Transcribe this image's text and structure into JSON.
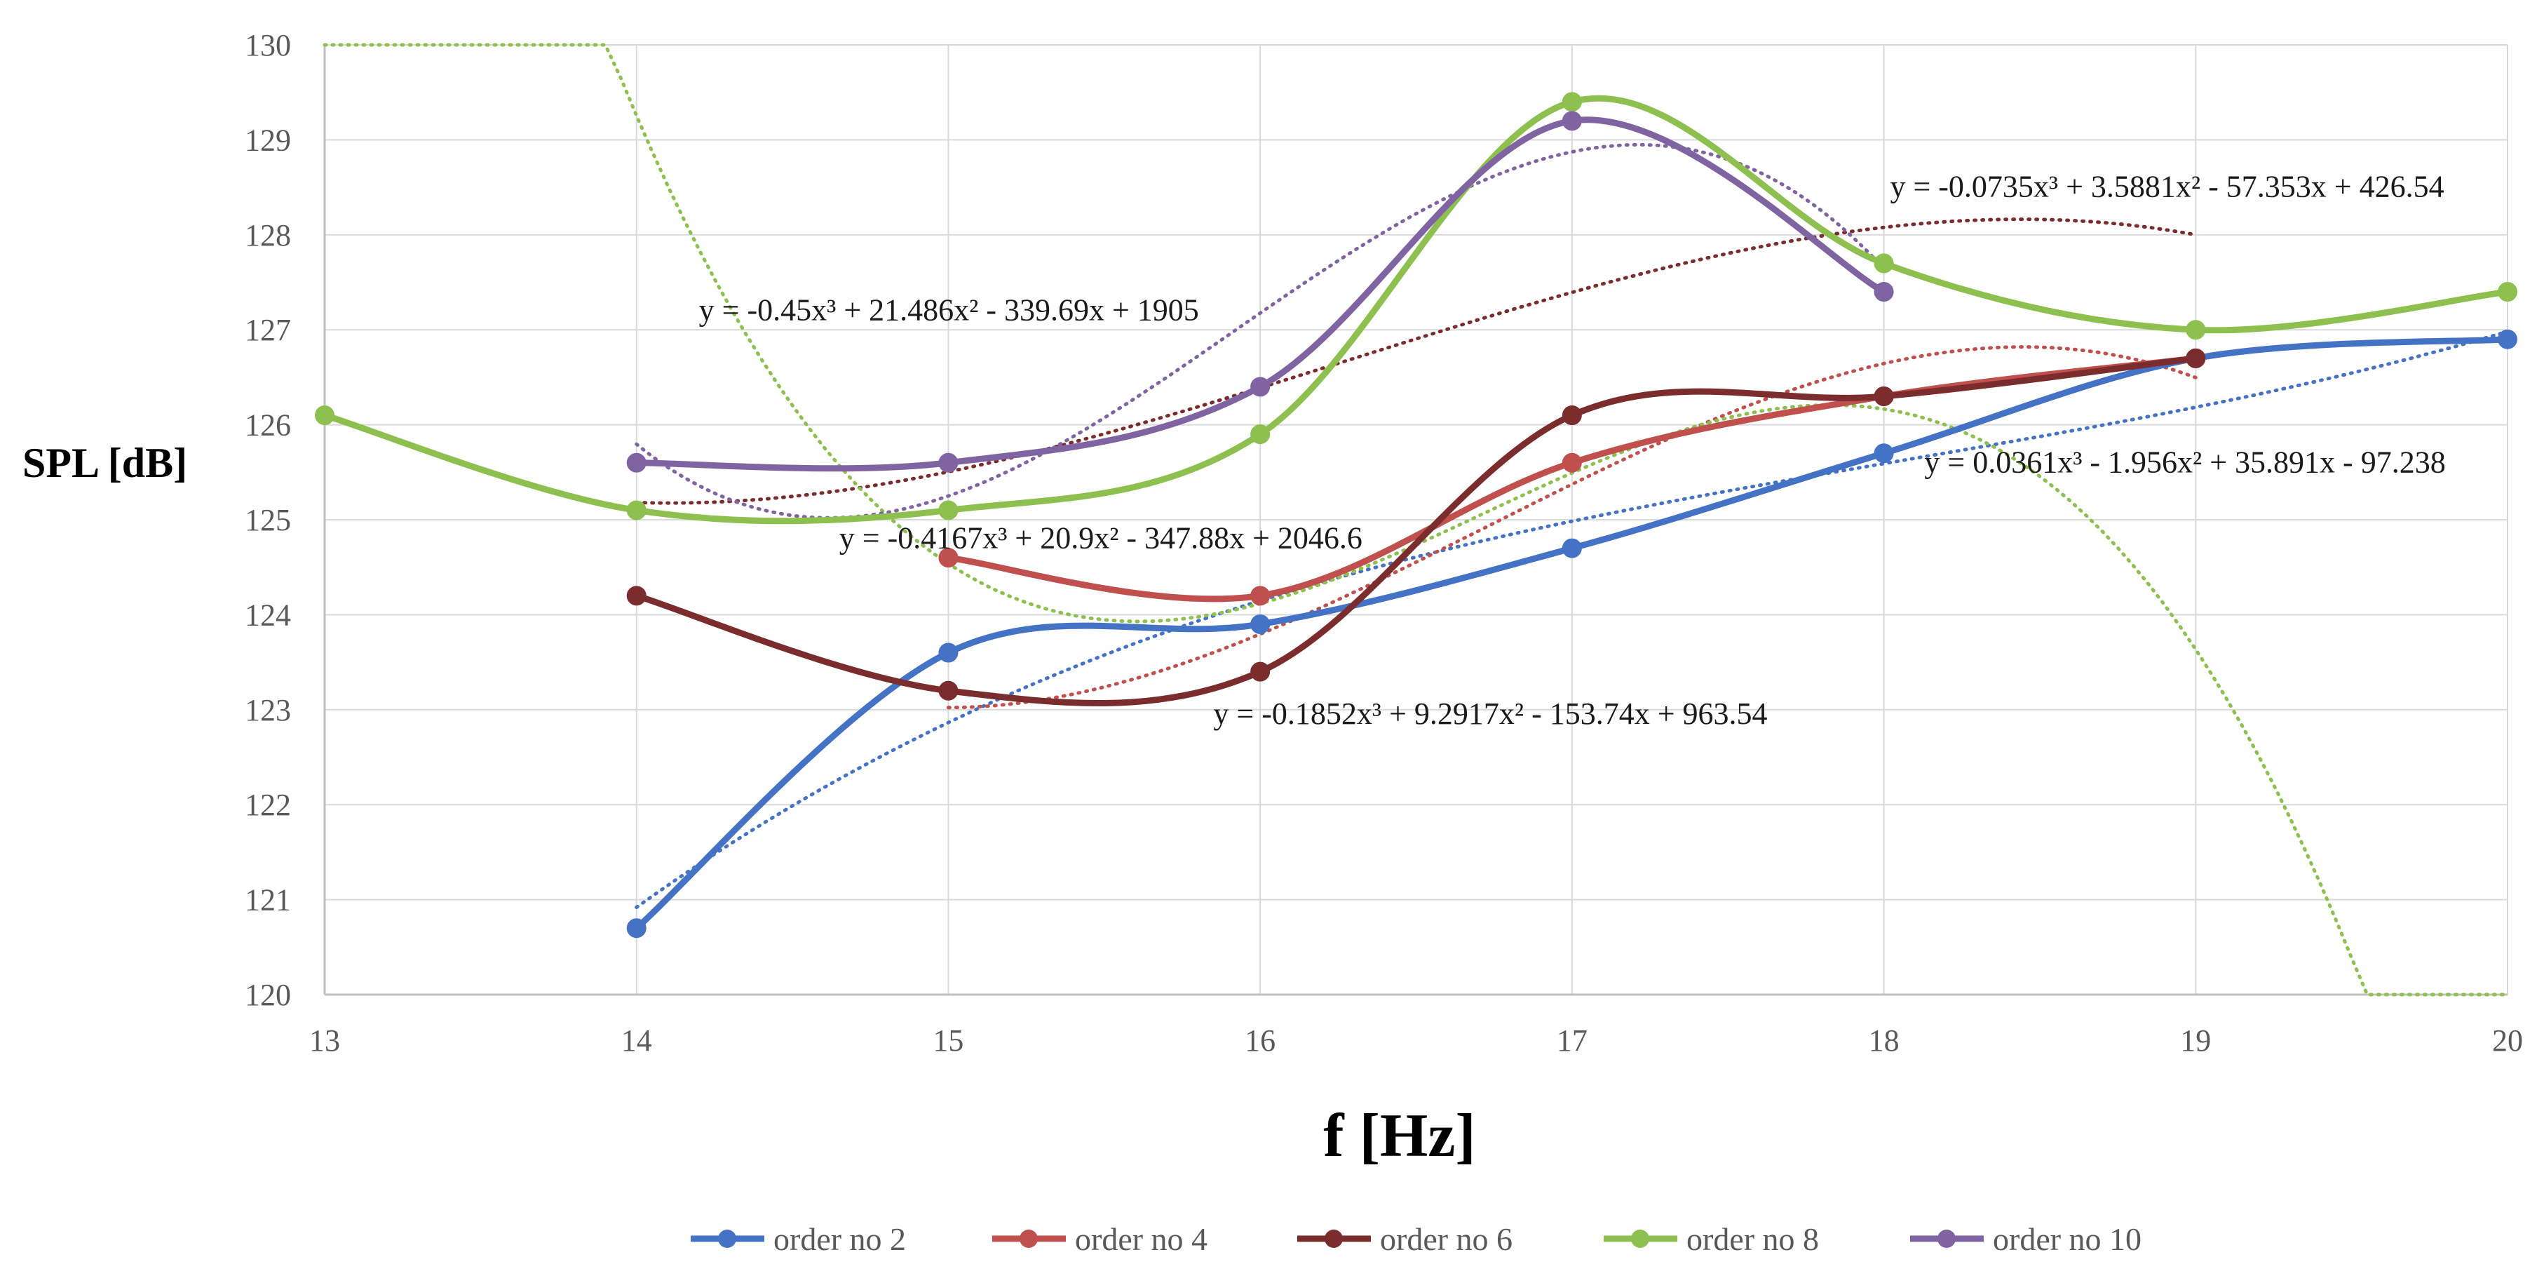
{
  "chart_data": {
    "type": "line",
    "title": "",
    "xlabel": "f [Hz]",
    "ylabel": "SPL [dB]",
    "xlim": [
      13,
      20
    ],
    "ylim": [
      120,
      130
    ],
    "x_ticks": [
      "13",
      "14",
      "15",
      "16",
      "17",
      "18",
      "19",
      "20"
    ],
    "y_ticks": [
      "120",
      "121",
      "122",
      "123",
      "124",
      "125",
      "126",
      "127",
      "128",
      "129",
      "130"
    ],
    "grid": true,
    "legend_position": "bottom",
    "series": [
      {
        "name": "order no 2",
        "color": "#4472C4",
        "x": [
          14,
          15,
          16,
          17,
          18,
          19,
          20
        ],
        "values": [
          120.7,
          123.6,
          123.9,
          124.7,
          125.7,
          126.7,
          126.9
        ],
        "trendline": {
          "type": "poly3",
          "coeffs": [
            0.0361,
            -1.956,
            35.891,
            -97.238
          ],
          "range": [
            14,
            20
          ]
        }
      },
      {
        "name": "order no 4",
        "color": "#C0504D",
        "x": [
          15,
          16,
          17,
          18,
          19
        ],
        "values": [
          124.6,
          124.2,
          125.6,
          126.3,
          126.7
        ],
        "trendline": {
          "type": "poly3",
          "coeffs": [
            -0.1852,
            9.2917,
            -153.74,
            963.54
          ],
          "range": [
            15,
            19
          ]
        }
      },
      {
        "name": "order no 6",
        "color": "#7B2C2C",
        "x": [
          14,
          15,
          16,
          17,
          18,
          19
        ],
        "values": [
          124.2,
          123.2,
          123.4,
          126.1,
          126.3,
          126.7
        ],
        "trendline": {
          "type": "poly3",
          "coeffs": [
            -0.0735,
            3.5881,
            -57.353,
            426.54
          ],
          "range": [
            14,
            19
          ]
        }
      },
      {
        "name": "order no 8",
        "color": "#8DC04F",
        "x": [
          13,
          14,
          15,
          16,
          17,
          18,
          19,
          20
        ],
        "values": [
          126.1,
          125.1,
          125.1,
          125.9,
          129.4,
          127.7,
          127.0,
          127.4
        ],
        "trendline": {
          "type": "poly3",
          "coeffs": [
            -0.4167,
            20.9,
            -347.88,
            2046.6
          ],
          "range": [
            13,
            20
          ]
        }
      },
      {
        "name": "order no 10",
        "color": "#8064A2",
        "x": [
          14,
          15,
          16,
          17,
          18
        ],
        "values": [
          125.6,
          125.6,
          126.4,
          129.2,
          127.4
        ],
        "trendline": {
          "type": "poly3",
          "coeffs": [
            -0.45,
            21.486,
            -339.69,
            1905
          ],
          "range": [
            14,
            18
          ]
        }
      }
    ],
    "annotations": [
      {
        "text": "y = -0.0735x³ + 3.5881x² - 57.353x + 426.54",
        "x": 18.02,
        "y": 128.4
      },
      {
        "text": "y = -0.45x³ + 21.486x² - 339.69x + 1905",
        "x": 14.2,
        "y": 127.1
      },
      {
        "text": "y = 0.0361x³ - 1.956x² + 35.891x - 97.238",
        "x": 18.13,
        "y": 125.5
      },
      {
        "text": "y = -0.4167x³ + 20.9x² - 347.88x + 2046.6",
        "x": 14.65,
        "y": 124.7
      },
      {
        "text": "y = -0.1852x³ + 9.2917x² - 153.74x + 963.54",
        "x": 15.85,
        "y": 122.85
      }
    ]
  }
}
